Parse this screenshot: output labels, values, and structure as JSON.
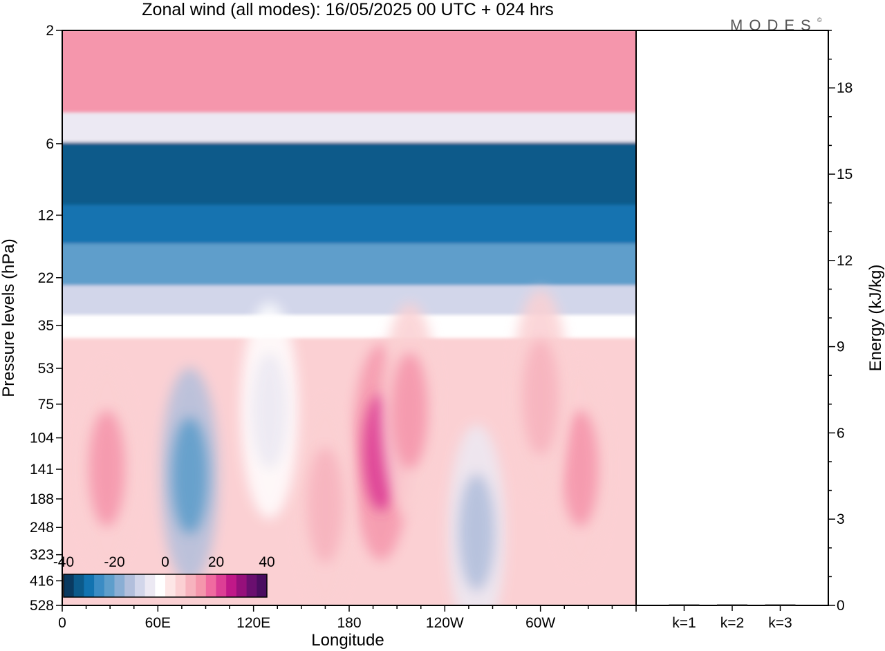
{
  "chart_data": [
    {
      "type": "heatmap",
      "title": "Zonal wind (all modes):  16/05/2025  00 UTC  + 024 hrs",
      "xlabel": "Longitude",
      "ylabel": "Pressure levels (hPa)",
      "x_ticks": [
        "0",
        "60E",
        "120E",
        "180",
        "120W",
        "60W"
      ],
      "x_tick_degrees": [
        0,
        60,
        120,
        180,
        240,
        300
      ],
      "xlim": [
        0,
        360
      ],
      "y_ticks": [
        "2",
        "6",
        "12",
        "22",
        "35",
        "53",
        "75",
        "104",
        "141",
        "188",
        "248",
        "323",
        "416",
        "528"
      ],
      "y_tick_levels": [
        2,
        6,
        12,
        22,
        35,
        53,
        75,
        104,
        141,
        188,
        248,
        323,
        416,
        528
      ],
      "y_scale": "log",
      "ylim": [
        2,
        528
      ],
      "grid": false,
      "colorbar": {
        "labels": [
          "-40",
          "-20",
          "0",
          "20",
          "40"
        ],
        "values": [
          -40,
          -20,
          0,
          20,
          40
        ],
        "placement": "bottom-left",
        "colors": [
          "#0a3a60",
          "#0c5a8a",
          "#1273b0",
          "#3b8cc4",
          "#5e9ecb",
          "#8aaed4",
          "#b2bfdc",
          "#d2d6ea",
          "#ece9f3",
          "#ffffff",
          "#fde6e6",
          "#fbd0d3",
          "#f7b3be",
          "#f596ac",
          "#f06aa0",
          "#dd3e95",
          "#c01888",
          "#96107b",
          "#6a0f6f",
          "#4a0d60"
        ]
      },
      "bands": [
        {
          "from": 2,
          "to": 4.5,
          "value": 14
        },
        {
          "from": 4.5,
          "to": 6,
          "value": -8
        },
        {
          "from": 6,
          "to": 11,
          "value": -36
        },
        {
          "from": 11,
          "to": 16,
          "value": -30
        },
        {
          "from": 16,
          "to": 24,
          "value": -22
        },
        {
          "from": 24,
          "to": 32,
          "value": -12
        },
        {
          "from": 32,
          "to": 40,
          "value": -4
        },
        {
          "from": 40,
          "to": 528,
          "value": 4
        }
      ],
      "features": [
        {
          "lon": 28,
          "level": 140,
          "value": 14
        },
        {
          "lon": 80,
          "level": 150,
          "value": -24
        },
        {
          "lon": 200,
          "level": 120,
          "value": 22
        },
        {
          "lon": 165,
          "level": 200,
          "value": 10
        },
        {
          "lon": 218,
          "level": 80,
          "value": 12
        },
        {
          "lon": 260,
          "level": 260,
          "value": -14
        },
        {
          "lon": 325,
          "level": 140,
          "value": 14
        },
        {
          "lon": 300,
          "level": 70,
          "value": 10
        },
        {
          "lon": 130,
          "level": 80,
          "value": -6
        }
      ]
    },
    {
      "type": "bar",
      "categories": [
        "k=1",
        "k=2",
        "k=3"
      ],
      "values": [
        0.02,
        0.01,
        0.01
      ],
      "ylabel": "Energy (kJ/kg)",
      "y_ticks": [
        "0",
        "3",
        "6",
        "9",
        "12",
        "15",
        "18"
      ],
      "ylim": [
        0,
        20
      ]
    }
  ],
  "logo": {
    "text": "MODES",
    "mark": "©"
  }
}
